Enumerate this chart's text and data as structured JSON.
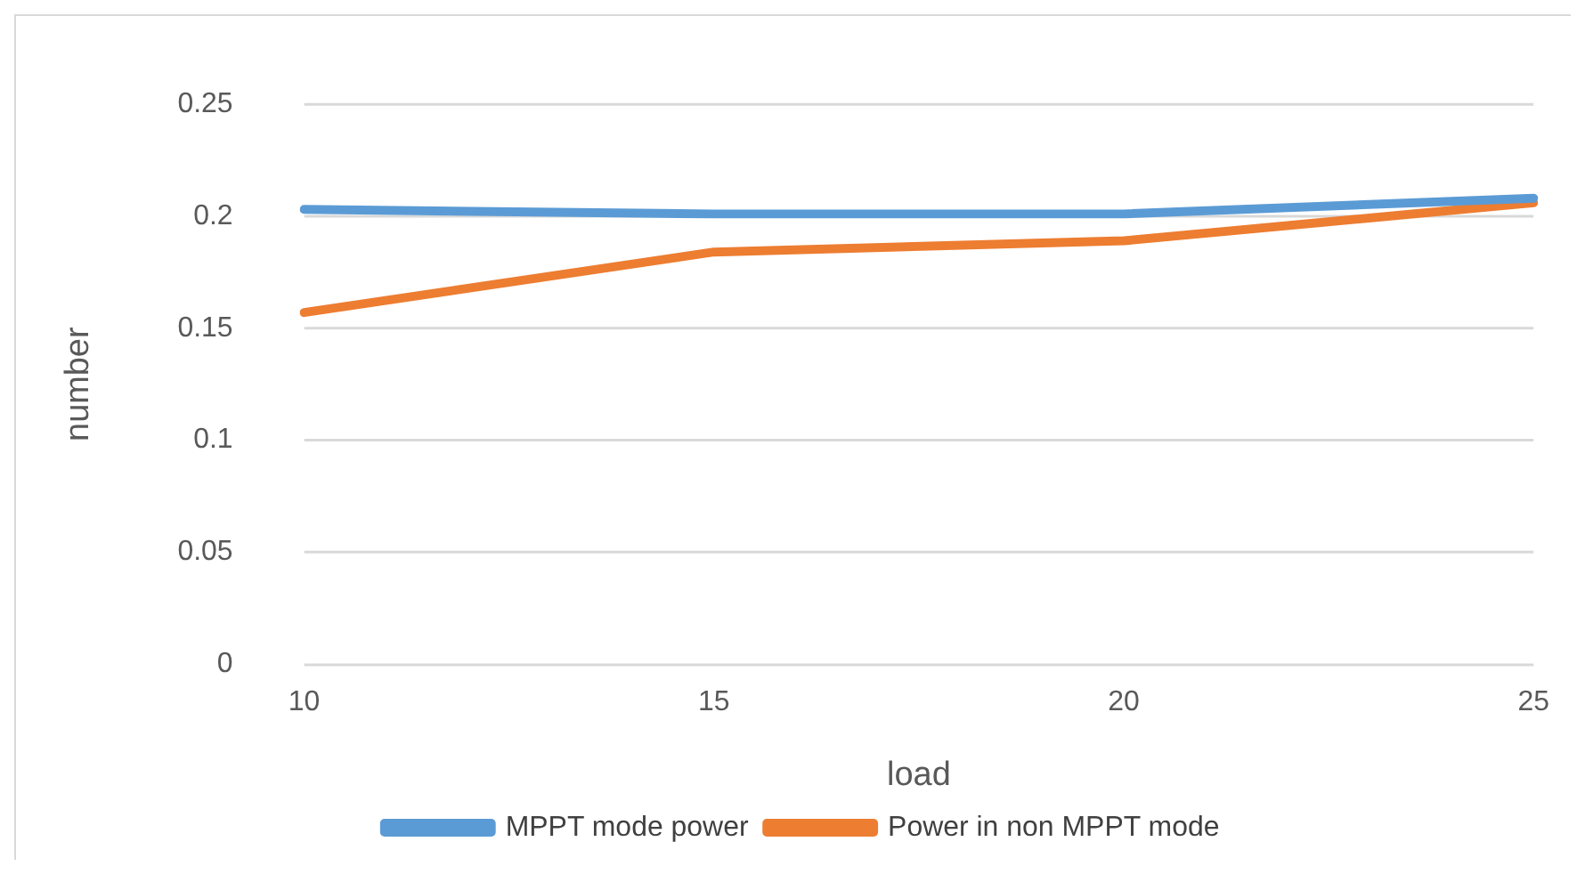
{
  "chart_data": {
    "type": "line",
    "xlabel": "load",
    "ylabel": "number",
    "categories": [
      "10",
      "15",
      "20",
      "25"
    ],
    "series": [
      {
        "name": "MPPT mode power",
        "color": "#5b9bd5",
        "values": [
          0.203,
          0.201,
          0.201,
          0.208
        ]
      },
      {
        "name": "Power in non MPPT mode",
        "color": "#ed7d31",
        "values": [
          0.157,
          0.184,
          0.189,
          0.206
        ]
      }
    ],
    "ylim": [
      0,
      0.25
    ],
    "yticks": [
      0,
      0.05,
      0.1,
      0.15,
      0.2,
      0.25
    ],
    "grid": "y",
    "legend": "bottom",
    "marker": "none",
    "line_style": "solid"
  }
}
